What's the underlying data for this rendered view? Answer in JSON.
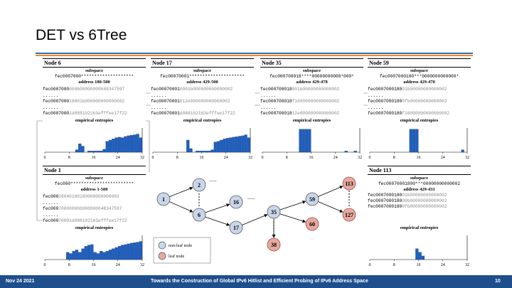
{
  "slide": {
    "title": "DET vs 6Tree"
  },
  "panels": {
    "node6": {
      "title": "Node 6",
      "subspace_label": "subspace",
      "subspace": "fec0007000********************",
      "address_range": "address 180-500",
      "addresses": [
        {
          "prefix": "fec0007000",
          "rest": "000600000000048347597"
        },
        {
          "prefix": "fec0007000",
          "rest": "18001b000000000000002"
        },
        {
          "prefix": "fec0007000",
          "rest": "1d088102163efffee17f22"
        }
      ],
      "ellipsis": "......",
      "entropy_label": "empirical entropies",
      "xticks": [
        "0",
        "8",
        "16",
        "24",
        "32"
      ],
      "chart_data": {
        "type": "bar",
        "xlim": [
          0,
          32
        ],
        "ylim": [
          0,
          1
        ],
        "values": [
          0,
          0,
          0,
          0,
          0,
          0,
          0,
          0,
          0,
          0,
          0.1,
          0.35,
          0.25,
          0,
          0.05,
          0.05,
          0.05,
          0.05,
          0.05,
          0.12,
          0.45,
          0.5,
          0.55,
          0.6,
          0.62,
          0.6,
          0.65,
          0.68,
          0.7,
          0.72,
          0.75,
          0.6
        ]
      }
    },
    "node17": {
      "title": "Node 17",
      "subspace_label": "subspace",
      "subspace": "fec00070001*********************",
      "address_range": "address 429-500",
      "addresses": [
        {
          "prefix": "fec00070001",
          "rest": "8001b000000000000002"
        },
        {
          "prefix": "fec00070001",
          "rest": "812e000000000000002"
        },
        {
          "prefix": "fec00070001",
          "rest": "d088102163efffee17f22"
        }
      ],
      "ellipsis": "......",
      "entropy_label": "empirical entropies",
      "xticks": [
        "0",
        "8",
        "16",
        "24",
        "32"
      ],
      "chart_data": {
        "type": "bar",
        "xlim": [
          0,
          32
        ],
        "ylim": [
          0,
          1
        ],
        "values": [
          0,
          0,
          0,
          0,
          0,
          0,
          0,
          0,
          0,
          0,
          0,
          0.5,
          0.15,
          0,
          0.05,
          0.05,
          0.05,
          0.05,
          0.05,
          0.1,
          0.42,
          0.45,
          0.5,
          0.55,
          0.58,
          0.6,
          0.62,
          0.64,
          0.66,
          0.68,
          0.72,
          0.6
        ]
      }
    },
    "node35": {
      "title": "Node 35",
      "subspace_label": "subspace",
      "subspace": "fec000700018****00000000000*000*",
      "address_range": "address 429-478",
      "addresses": [
        {
          "prefix": "fec000700018",
          "rest": "001b00000000000002"
        },
        {
          "prefix": "fec000700018",
          "rest": "f16000000000000002"
        },
        {
          "prefix": "fec000700018",
          "rest": "12e000000000000002"
        }
      ],
      "ellipsis": "......",
      "entropy_label": "empirical entropies",
      "xticks": [
        "0",
        "8",
        "16",
        "24",
        "32"
      ],
      "chart_data": {
        "type": "bar",
        "xlim": [
          0,
          32
        ],
        "ylim": [
          0,
          1
        ],
        "values": [
          0,
          0,
          0,
          0,
          0,
          0,
          0,
          0,
          0,
          0,
          0,
          0,
          0.95,
          0.95,
          0.95,
          0.95,
          0,
          0,
          0,
          0,
          0,
          0,
          0,
          0,
          0,
          0,
          0,
          0.05,
          0,
          0,
          0.05,
          0
        ]
      }
    },
    "node59": {
      "title": "Node 59",
      "subspace_label": "subspace",
      "subspace": "fec0007000180***0000000000000*",
      "address_range": "address 429-470",
      "addresses": [
        {
          "prefix": "fec0007000180",
          "rest": "01b00000000000002"
        },
        {
          "prefix": "fec0007000180",
          "rest": "0fb00000000000002"
        },
        {
          "prefix": "fec0007000180",
          "rest": "f16000000000000002"
        }
      ],
      "ellipsis": "......",
      "entropy_label": "empirical entropies",
      "xticks": [
        "0",
        "8",
        "16",
        "24",
        "32"
      ],
      "chart_data": {
        "type": "bar",
        "xlim": [
          0,
          32
        ],
        "ylim": [
          0,
          1
        ],
        "values": [
          0,
          0,
          0,
          0,
          0,
          0,
          0,
          0,
          0,
          0,
          0,
          0,
          0,
          0.95,
          0.95,
          0.95,
          0,
          0,
          0,
          0,
          0,
          0,
          0,
          0,
          0,
          0,
          0,
          0,
          0,
          0,
          0.1,
          0
        ]
      }
    },
    "node1": {
      "title": "Node 1",
      "subspace_label": "subspace",
      "subspace": "fec000************************",
      "address_range": "address 1-500",
      "addresses": [
        {
          "prefix": "fec000",
          "rest": "28040100100000000000002"
        },
        {
          "prefix": "fec000",
          "rest": "700000006000000048347597"
        },
        {
          "prefix": "fec000",
          "rest": "70001d088102163efffee17f22"
        }
      ],
      "ellipsis": "......",
      "entropy_label": "empirical entropies",
      "xticks": [
        "0",
        "8",
        "16",
        "24",
        "32"
      ],
      "chart_data": {
        "type": "bar",
        "xlim": [
          0,
          32
        ],
        "ylim": [
          0,
          1
        ],
        "values": [
          0,
          0,
          0,
          0,
          0,
          0,
          0,
          0.3,
          0.25,
          0.35,
          0.4,
          0.3,
          0.45,
          0.55,
          0.6,
          0.62,
          0.3,
          0.25,
          0.35,
          0.3,
          0.35,
          0.4,
          0.45,
          0.5,
          0.55,
          0.6,
          0.62,
          0.65,
          0.68,
          0.7,
          0.72,
          0.75
        ]
      }
    },
    "node113": {
      "title": "Node 113",
      "subspace_label": "subspace",
      "subspace": "fec00070001800***00000000000002",
      "address_range": "address 429-431",
      "addresses": [
        {
          "prefix": "fec0007000180",
          "rest": "01b00000000000002"
        },
        {
          "prefix": "fec0007000180",
          "rest": "09b00000000000002"
        },
        {
          "prefix": "fec0007000180",
          "rest": "0fb00000000000002"
        }
      ],
      "entropy_label": "empirical entropies",
      "xticks": [
        "0",
        "8",
        "16",
        "24",
        "32"
      ],
      "chart_data": {
        "type": "bar",
        "xlim": [
          0,
          32
        ],
        "ylim": [
          0,
          1
        ],
        "values": [
          0,
          0,
          0,
          0,
          0,
          0,
          0,
          0,
          0,
          0,
          0,
          0,
          0,
          0,
          0,
          0.45,
          0.3,
          0.15,
          0,
          0,
          0,
          0,
          0,
          0,
          0,
          0,
          0,
          0,
          0,
          0,
          0,
          0
        ]
      }
    }
  },
  "tree": {
    "nodes": [
      "1",
      "2",
      "6",
      "16",
      "17",
      "35",
      "59",
      "113",
      "60",
      "127",
      "38"
    ],
    "ellipsis": "......",
    "legend": {
      "nonleaf": "non-leaf node",
      "leaf": "leaf node"
    },
    "colors": {
      "nonleaf": "#c9d6ea",
      "leaf": "#e6a9a0",
      "edge": "#000000"
    }
  },
  "footer": {
    "date": "Nov 24 2021",
    "title": "Towards the Construction of Global IPv6 Hitlist and Efficient Probing of IPv6 Address Space",
    "page": "10"
  },
  "colors": {
    "bar": "#1f5fbf",
    "accent_blue": "#2e6db4",
    "accent_orange": "#f0882c",
    "footer_bg": "#1f4e8c"
  }
}
